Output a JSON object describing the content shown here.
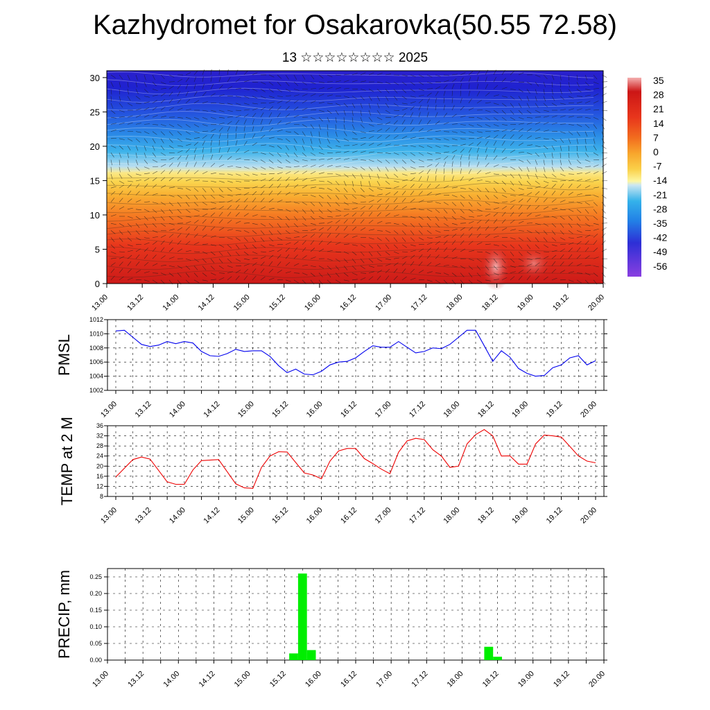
{
  "title": "Kazhydromet for Osakarovka(50.55 72.58)",
  "subtitle": "13 ☆☆☆☆☆☆☆☆ 2025",
  "x_ticks": [
    "13.00",
    "13.12",
    "14.00",
    "14.12",
    "15.00",
    "15.12",
    "16.00",
    "16.12",
    "17.00",
    "17.12",
    "18.00",
    "18.12",
    "19.00",
    "19.12",
    "20.00"
  ],
  "chart_data": [
    {
      "type": "heatmap",
      "title": "",
      "ylabel": "",
      "ylim": [
        0,
        31
      ],
      "y_ticks": [
        0,
        5,
        10,
        15,
        20,
        25,
        30
      ],
      "colorbar": {
        "labels": [
          "35",
          "28",
          "21",
          "14",
          "7",
          "0",
          "-7",
          "-14",
          "-21",
          "-28",
          "-35",
          "-42",
          "-49",
          "-56"
        ],
        "colors": [
          "#f4b0b0",
          "#cc1616",
          "#e8361c",
          "#f26b1e",
          "#f8a52c",
          "#fad049",
          "#fdf6a0",
          "#b6dff2",
          "#34b2ea",
          "#2280e6",
          "#2452de",
          "#2d2fd6",
          "#5626d8",
          "#8a3fe0"
        ]
      },
      "note_overlay": "wind barbs and isotherm contours"
    },
    {
      "type": "line",
      "ylabel": "PMSL",
      "ylim": [
        1002,
        1012
      ],
      "y_ticks": [
        1002,
        1004,
        1006,
        1008,
        1010,
        1012
      ],
      "line_color": "#0000ee",
      "x": [
        0,
        3,
        6,
        9,
        12,
        15,
        18,
        21,
        24,
        27,
        30,
        33,
        36,
        39,
        42,
        45,
        48,
        51,
        54,
        57,
        60,
        63,
        66,
        69,
        72,
        75,
        78,
        81,
        84,
        87,
        90,
        93,
        96,
        99,
        102,
        105,
        108,
        111,
        114,
        117,
        120,
        123,
        126,
        129,
        132,
        135,
        138,
        141,
        144,
        147,
        150,
        153,
        156,
        159,
        162,
        165,
        168
      ],
      "values": [
        1010.4,
        1010.5,
        1009.5,
        1008.5,
        1008.2,
        1008.4,
        1008.9,
        1008.6,
        1008.9,
        1008.7,
        1007.5,
        1006.9,
        1006.8,
        1007.2,
        1007.8,
        1007.5,
        1007.6,
        1007.6,
        1006.8,
        1005.5,
        1004.5,
        1005.0,
        1004.3,
        1004.2,
        1004.7,
        1005.6,
        1006.0,
        1006.1,
        1006.6,
        1007.5,
        1008.3,
        1008.1,
        1008.1,
        1008.9,
        1008.1,
        1007.3,
        1007.5,
        1008.0,
        1007.9,
        1008.5,
        1009.5,
        1010.5,
        1010.5,
        1008.3,
        1006.1,
        1007.6,
        1006.7,
        1005.1,
        1004.4,
        1004.0,
        1004.1,
        1005.2,
        1005.6,
        1006.6,
        1006.9,
        1005.6,
        1006.2
      ]
    },
    {
      "type": "line",
      "ylabel": "TEMP at 2 M",
      "ylim": [
        8,
        36
      ],
      "y_ticks": [
        8,
        12,
        16,
        20,
        24,
        28,
        32,
        36
      ],
      "line_color": "#ee0000",
      "x": [
        0,
        6,
        9,
        12,
        18,
        21,
        24,
        27,
        30,
        36,
        42,
        45,
        48,
        51,
        54,
        57,
        60,
        66,
        69,
        72,
        75,
        78,
        81,
        84,
        87,
        90,
        93,
        96,
        99,
        102,
        105,
        108,
        111,
        114,
        117,
        120,
        123,
        126,
        129,
        132,
        135,
        138,
        141,
        144,
        147,
        150,
        153,
        156,
        159,
        162,
        165,
        168
      ],
      "values": [
        15.7,
        22.6,
        23.6,
        22.8,
        13.8,
        12.8,
        12.8,
        18.5,
        22.2,
        22.6,
        13.0,
        11.4,
        11.2,
        19.5,
        24.0,
        25.7,
        25.6,
        17.3,
        16.5,
        15.0,
        22.0,
        26.0,
        27.0,
        27.0,
        23.0,
        21.0,
        18.8,
        17.0,
        25.5,
        30.0,
        31.0,
        30.5,
        26.5,
        24.0,
        19.5,
        20.0,
        28.8,
        32.5,
        34.5,
        32.0,
        24.0,
        24.1,
        20.8,
        20.8,
        28.8,
        32.3,
        32.0,
        31.5,
        27.8,
        24.0,
        22.0,
        21.3
      ]
    },
    {
      "type": "bar",
      "ylabel": "PRECIP, mm",
      "ylim": [
        0,
        0.275
      ],
      "y_tick_labels": [
        "0.00",
        "0.05",
        "0.10",
        "0.15",
        "0.20",
        "0.25"
      ],
      "bar_color": "#00ee00",
      "x": [
        63,
        66,
        69,
        129,
        132
      ],
      "values": [
        0.02,
        0.26,
        0.03,
        0.04,
        0.01
      ]
    }
  ]
}
